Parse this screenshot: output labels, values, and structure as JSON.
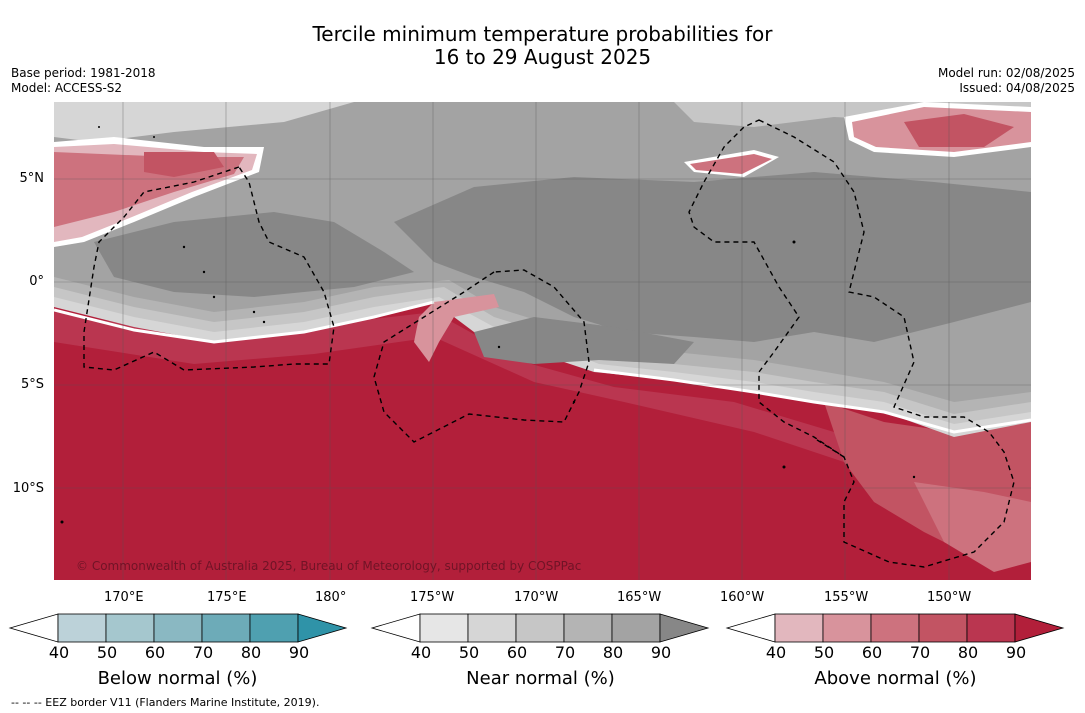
{
  "title_line1": "Tercile minimum temperature probabilities for",
  "title_line2": "16 to 29 August 2025",
  "base_period": "Base period: 1981-2018",
  "model": "Model: ACCESS-S2",
  "model_run": "Model run: 02/08/2025",
  "issued": "Issued: 04/08/2025",
  "lat_labels": [
    "5°N",
    "0°",
    "5°S",
    "10°S"
  ],
  "lon_labels": [
    "170°E",
    "175°E",
    "180°",
    "175°W",
    "170°W",
    "165°W",
    "160°W",
    "155°W",
    "150°W"
  ],
  "copyright": "© Commonwealth of Australia 2025, Bureau of Meteorology, supported by COSPPac",
  "colorbars": [
    {
      "label": "Below normal (%)",
      "ticks": [
        "40",
        "50",
        "60",
        "70",
        "80",
        "90"
      ],
      "colors": [
        "#ffffff",
        "#bcd2d9",
        "#a5c7ce",
        "#8ab8c2",
        "#6dabb8",
        "#4fa0b0",
        "#2f93a8"
      ]
    },
    {
      "label": "Near normal (%)",
      "ticks": [
        "40",
        "50",
        "60",
        "70",
        "80",
        "90"
      ],
      "colors": [
        "#ffffff",
        "#e6e6e6",
        "#d6d6d6",
        "#c6c6c6",
        "#b4b4b4",
        "#a3a3a3",
        "#878787"
      ]
    },
    {
      "label": "Above normal (%)",
      "ticks": [
        "40",
        "50",
        "60",
        "70",
        "80",
        "90"
      ],
      "colors": [
        "#ffffff",
        "#e2b7be",
        "#d8939c",
        "#cd727e",
        "#c25463",
        "#ba3650",
        "#b21f3a"
      ]
    }
  ],
  "footnote": "--  --  -- EEZ border V11 (Flanders Marine Institute, 2019)."
}
